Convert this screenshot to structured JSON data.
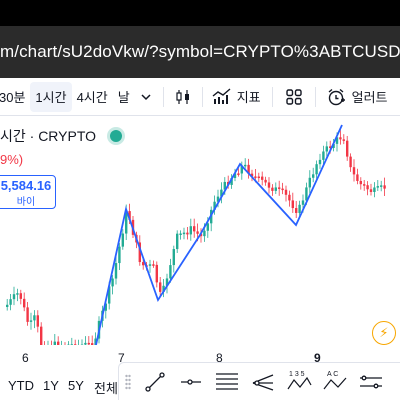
{
  "browser": {
    "url": "m/chart/sU2doVkw/?symbol=CRYPTO%3ABTCUSD"
  },
  "toolbar": {
    "intervals": [
      "30분",
      "1시간",
      "4시간",
      "날"
    ],
    "active_interval": "1시간",
    "chevron_icon": "chevron-down-icon",
    "candle_icon": "candlestick-icon",
    "indicators_label": "지표",
    "indicators_icon": "indicators-icon",
    "layout_icon": "grid-layout-icon",
    "alert_label": "얼러트",
    "alert_icon": "alarm-clock-icon"
  },
  "chart": {
    "symbol_title": "시간 · CRYPTO",
    "change_text": "9%)",
    "price_value": "5,584.16",
    "price_label": "바이",
    "colors": {
      "up": "#22ab94",
      "down": "#f23645",
      "drawing": "#2962ff"
    }
  },
  "xaxis": {
    "ticks": [
      "6",
      "7",
      "8",
      "9"
    ],
    "bold_tick": "9"
  },
  "bottom_bar": {
    "ranges": [
      "YTD",
      "1Y",
      "5Y",
      "전체"
    ]
  },
  "drawing_tools": [
    "trend-line-icon",
    "horizontal-ray-icon",
    "fib-retracement-icon",
    "pitchfork-icon",
    "xabcd-pattern-icon",
    "abcd-pattern-icon",
    "ruler-icon"
  ],
  "drawing_labels": {
    "xabcd": "1 3 5",
    "abcd": "A C"
  }
}
